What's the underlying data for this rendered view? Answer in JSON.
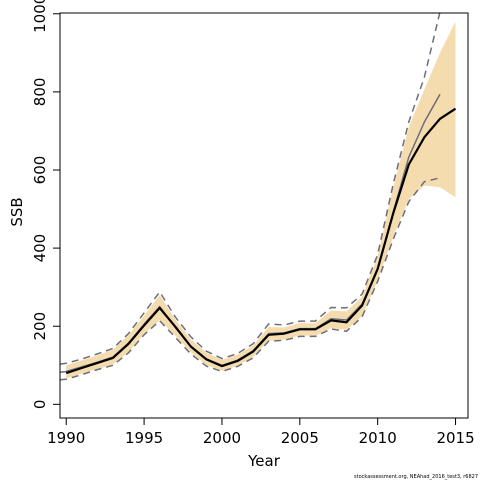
{
  "chart_data": {
    "type": "line",
    "title": "",
    "xlabel": "Year",
    "ylabel": "SSB",
    "xlim": [
      1989.6,
      2015.8
    ],
    "ylim": [
      -35,
      1002
    ],
    "xticks": [
      1990,
      1995,
      2000,
      2005,
      2010,
      2015
    ],
    "yticks": [
      0,
      200,
      400,
      600,
      800,
      1000
    ],
    "grid": false,
    "legend": "none",
    "colors": {
      "band": "#f4dcae",
      "main_line": "#000000",
      "retro_line": "#6e6e78",
      "ci_line": "#6e6e78",
      "axis": "#000000"
    },
    "series": [
      {
        "role": "estimate",
        "x": [
          1990,
          1991,
          1992,
          1993,
          1994,
          1995,
          1996,
          1997,
          1998,
          1999,
          2000,
          2001,
          2002,
          2003,
          2004,
          2005,
          2006,
          2007,
          2008,
          2009,
          2010,
          2011,
          2012,
          2013,
          2014,
          2015
        ],
        "values": [
          80,
          93,
          106,
          119,
          155,
          202,
          247,
          199,
          148,
          115,
          98,
          111,
          135,
          178,
          181,
          192,
          192,
          215,
          210,
          253,
          347,
          490,
          614,
          684,
          731,
          757
        ]
      },
      {
        "role": "ci_upper",
        "x": [
          1989.6,
          1990,
          1991,
          1992,
          1993,
          1994,
          1995,
          1996,
          1997,
          1998,
          1999,
          2000,
          2001,
          2002,
          2003,
          2004,
          2005,
          2006,
          2007,
          2008,
          2009,
          2010,
          2011,
          2012,
          2013,
          2014
        ],
        "values": [
          103,
          105,
          116,
          129,
          143,
          181,
          234,
          288,
          224,
          173,
          136,
          117,
          130,
          155,
          206,
          203,
          213,
          213,
          248,
          247,
          282,
          384,
          565,
          723,
          838,
          1005
        ]
      },
      {
        "role": "ci_lower",
        "x": [
          1989.6,
          1990,
          1991,
          1992,
          1993,
          1994,
          1995,
          1996,
          1997,
          1998,
          1999,
          2000,
          2001,
          2002,
          2003,
          2004,
          2005,
          2006,
          2007,
          2008,
          2009,
          2010,
          2011,
          2012,
          2013,
          2014
        ],
        "values": [
          63,
          64,
          76,
          89,
          100,
          132,
          178,
          214,
          172,
          129,
          98,
          84,
          97,
          119,
          162,
          164,
          174,
          174,
          193,
          187,
          224,
          315,
          423,
          519,
          570,
          580
        ]
      },
      {
        "role": "retrospective",
        "x": [
          1989.6,
          1990,
          1991,
          1992,
          1993,
          1994,
          1995,
          1996,
          1997,
          1998,
          1999,
          2000,
          2001,
          2002,
          2003,
          2004,
          2005,
          2006,
          2007,
          2008,
          2009,
          2010,
          2011,
          2012,
          2013,
          2014
        ],
        "values": [
          82,
          84,
          96,
          108,
          121,
          157,
          205,
          250,
          197,
          148,
          116,
          100,
          113,
          137,
          181,
          183,
          194,
          194,
          219,
          216,
          257,
          348,
          493,
          633,
          723,
          794
        ]
      }
    ],
    "band": {
      "x": [
        1990,
        1991,
        1992,
        1993,
        1994,
        1995,
        1996,
        1997,
        1998,
        1999,
        2000,
        2001,
        2002,
        2003,
        2004,
        2005,
        2006,
        2007,
        2008,
        2009,
        2010,
        2011,
        2012,
        2013,
        2014,
        2015
      ],
      "upper": [
        100,
        113,
        125,
        140,
        177,
        227,
        280,
        218,
        166,
        132,
        114,
        127,
        150,
        198,
        197,
        208,
        208,
        240,
        238,
        275,
        380,
        556,
        710,
        806,
        900,
        980
      ],
      "lower": [
        66,
        79,
        90,
        102,
        134,
        181,
        216,
        176,
        133,
        101,
        86,
        99,
        121,
        163,
        166,
        176,
        176,
        195,
        191,
        226,
        318,
        429,
        525,
        560,
        556,
        530
      ]
    },
    "credit": "stockassessment.org, NEAhad_2016_test3, r6827"
  }
}
